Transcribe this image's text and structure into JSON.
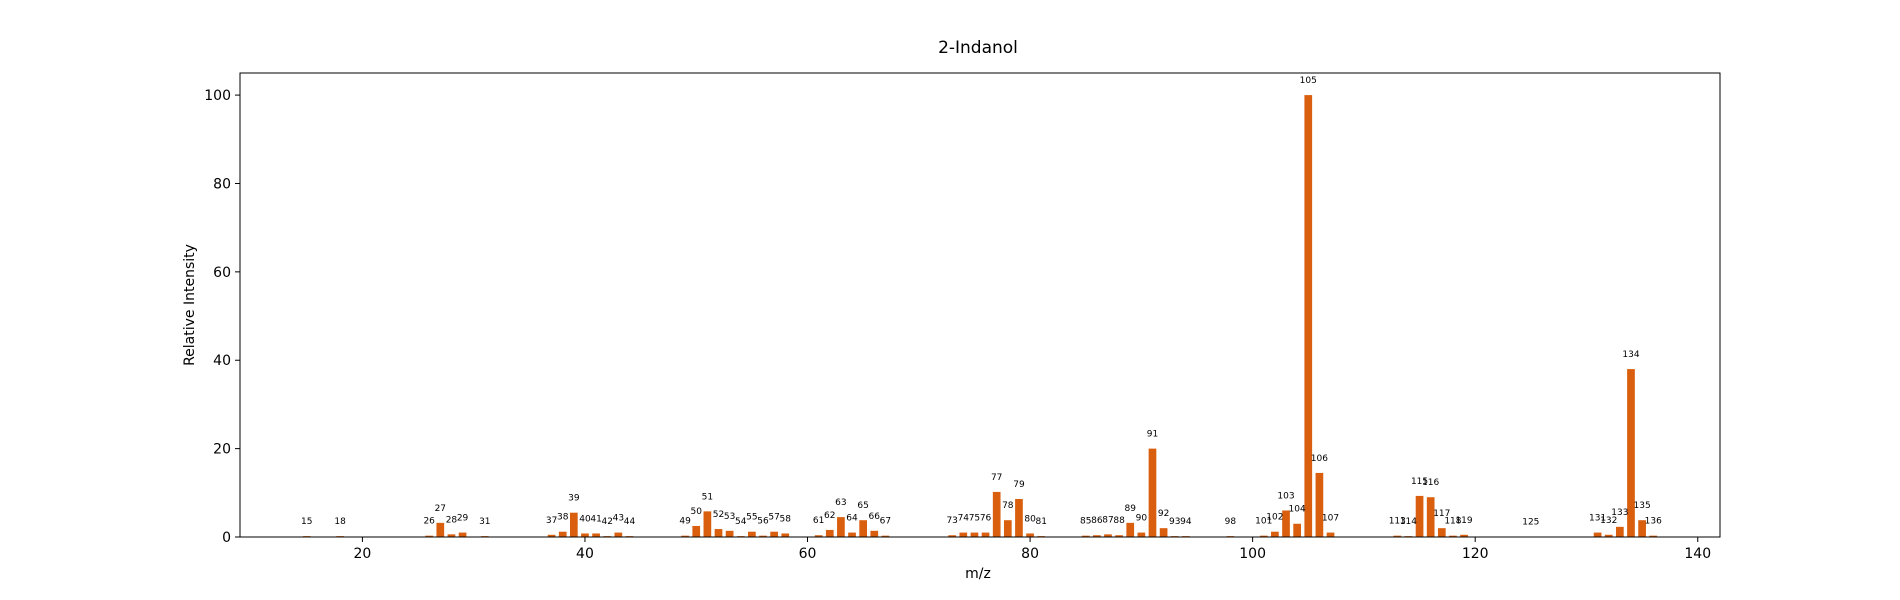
{
  "chart_data": {
    "type": "bar",
    "title": "2-Indanol",
    "xlabel": "m/z",
    "ylabel": "Relative Intensity",
    "xlim": [
      9,
      142
    ],
    "ylim": [
      0,
      105
    ],
    "xticks": [
      20,
      40,
      60,
      80,
      100,
      120,
      140
    ],
    "yticks": [
      0,
      20,
      40,
      60,
      80,
      100
    ],
    "grid": false,
    "bar_color": "#d95f0e",
    "x": [
      15,
      18,
      26,
      27,
      28,
      29,
      31,
      37,
      38,
      39,
      40,
      41,
      42,
      43,
      44,
      49,
      50,
      51,
      52,
      53,
      54,
      55,
      56,
      57,
      58,
      61,
      62,
      63,
      64,
      65,
      66,
      67,
      73,
      74,
      75,
      76,
      77,
      78,
      79,
      80,
      81,
      85,
      86,
      87,
      88,
      89,
      90,
      91,
      92,
      93,
      94,
      98,
      101,
      102,
      103,
      104,
      105,
      106,
      107,
      113,
      114,
      115,
      116,
      117,
      118,
      119,
      125,
      131,
      132,
      133,
      134,
      135,
      136
    ],
    "values": [
      0.2,
      0.2,
      0.3,
      3.2,
      0.6,
      1.0,
      0.2,
      0.5,
      1.2,
      5.5,
      0.8,
      0.8,
      0.2,
      1.0,
      0.2,
      0.3,
      2.5,
      5.8,
      1.8,
      1.4,
      0.2,
      1.2,
      0.3,
      1.2,
      0.8,
      0.4,
      1.6,
      4.5,
      1.0,
      3.8,
      1.4,
      0.3,
      0.4,
      1.0,
      1.0,
      1.0,
      10.2,
      3.8,
      8.6,
      0.8,
      0.2,
      0.3,
      0.4,
      0.6,
      0.4,
      3.2,
      1.0,
      20.0,
      2.0,
      0.2,
      0.2,
      0.2,
      0.3,
      1.2,
      6.0,
      3.0,
      100.0,
      14.5,
      1.0,
      0.3,
      0.2,
      9.3,
      9.0,
      2.0,
      0.3,
      0.5,
      0.1,
      1.0,
      0.5,
      2.3,
      38.0,
      3.8,
      0.3
    ]
  }
}
